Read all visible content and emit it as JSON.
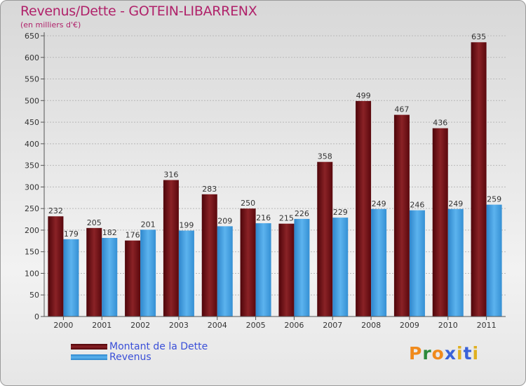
{
  "chart_data": {
    "type": "bar",
    "title": "Revenus/Dette - GOTEIN-LIBARRENX",
    "subtitle": "(en milliers d'€)",
    "categories": [
      "2000",
      "2001",
      "2002",
      "2003",
      "2004",
      "2005",
      "2006",
      "2007",
      "2008",
      "2009",
      "2010",
      "2011"
    ],
    "series": [
      {
        "name": "Montant de la Dette",
        "values": [
          232,
          205,
          176,
          316,
          283,
          250,
          215,
          358,
          499,
          467,
          436,
          635
        ],
        "color": "#6b0d12"
      },
      {
        "name": "Revenus",
        "values": [
          179,
          182,
          201,
          199,
          209,
          216,
          226,
          229,
          249,
          246,
          249,
          259
        ],
        "color": "#3f9ee0"
      }
    ],
    "ylim": [
      0,
      650
    ],
    "yticks": [
      0,
      50,
      100,
      150,
      200,
      250,
      300,
      350,
      400,
      450,
      500,
      550,
      600,
      650
    ],
    "grid": true,
    "legend": "bottom-left"
  },
  "logo": {
    "text": "Proxiti",
    "colors": [
      "#f08a1c",
      "#2c8a3c",
      "#3a62d8",
      "#e0b020"
    ]
  }
}
